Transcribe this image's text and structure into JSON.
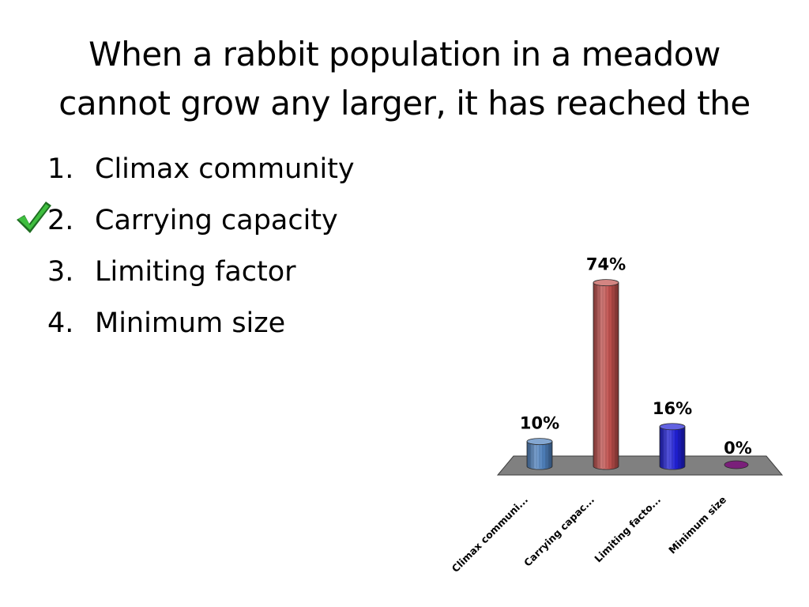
{
  "slide": {
    "title_lines": [
      "When a rabbit population in a meadow",
      "cannot grow any larger, it has reached the"
    ],
    "answers": [
      {
        "number": "1.",
        "text": "Climax community",
        "correct": false
      },
      {
        "number": "2.",
        "text": "Carrying capacity",
        "correct": true
      },
      {
        "number": "3.",
        "text": "Limiting factor",
        "correct": false
      },
      {
        "number": "4.",
        "text": "Minimum size",
        "correct": false
      }
    ],
    "correct_marker_icon": "checkmark-icon"
  },
  "chart_data": {
    "type": "bar",
    "style": "3d-cylinder",
    "categories": [
      "Climax communi...",
      "Carrying capac...",
      "Limiting facto...",
      "Minimum size"
    ],
    "values": [
      10,
      74,
      16,
      0
    ],
    "value_labels": [
      "10%",
      "74%",
      "16%",
      "0%"
    ],
    "unit": "%",
    "ylim": [
      0,
      100
    ],
    "grid": false,
    "legend": "none",
    "colors": [
      "#4f81bd",
      "#c0504d",
      "#1f1fd6",
      "#7a1f7a"
    ],
    "floor_color": "#808080"
  }
}
